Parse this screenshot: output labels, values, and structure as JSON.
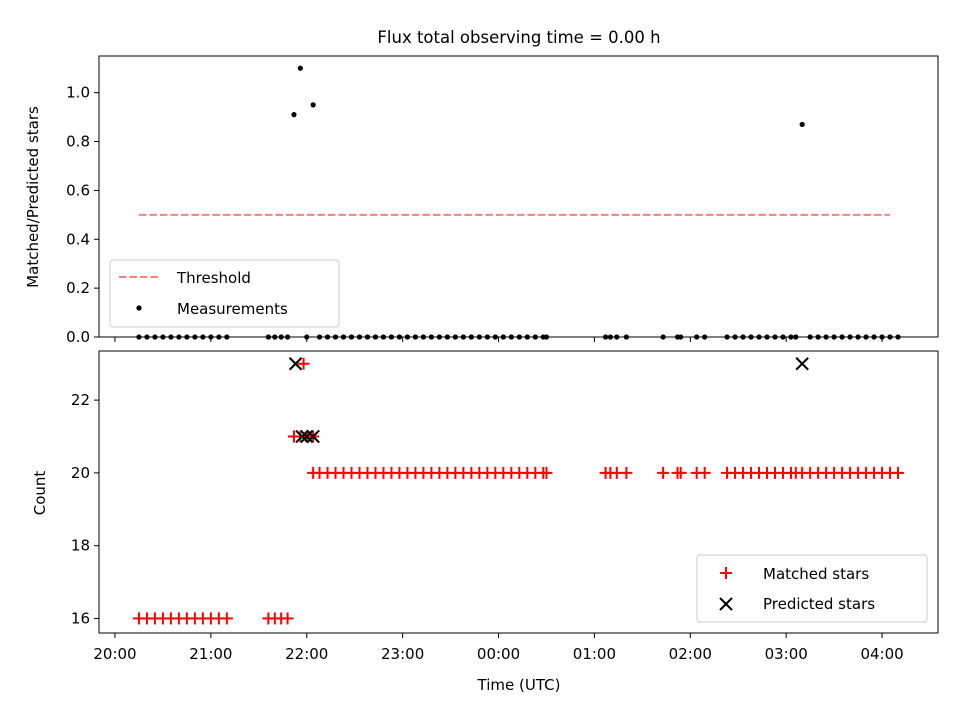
{
  "chart_data": [
    {
      "type": "scatter",
      "title": "Flux total observing time = 0.00 h",
      "xlabel": "",
      "ylabel": "Matched/Predicted stars",
      "xlim": [
        "19:50",
        "04:35"
      ],
      "ylim": [
        0,
        1.15
      ],
      "yticks": [
        "0.0",
        "0.2",
        "0.4",
        "0.6",
        "0.8",
        "1.0"
      ],
      "grid": false,
      "legend_position": "lower-left",
      "series": [
        {
          "name": "Threshold",
          "style": "dashed-line",
          "color": "#ff7f7f",
          "x": [
            "20:15",
            "04:05"
          ],
          "y": [
            0.5,
            0.5
          ]
        },
        {
          "name": "Measurements",
          "style": "dot",
          "color": "#000000",
          "points": [
            [
              "20:15",
              0
            ],
            [
              "20:20",
              0
            ],
            [
              "20:25",
              0
            ],
            [
              "20:30",
              0
            ],
            [
              "20:35",
              0
            ],
            [
              "20:40",
              0
            ],
            [
              "20:45",
              0
            ],
            [
              "20:50",
              0
            ],
            [
              "20:55",
              0
            ],
            [
              "21:00",
              0
            ],
            [
              "21:05",
              0
            ],
            [
              "21:10",
              0
            ],
            [
              "21:36",
              0
            ],
            [
              "21:40",
              0
            ],
            [
              "21:44",
              0
            ],
            [
              "21:48",
              0
            ],
            [
              "21:52",
              0.91
            ],
            [
              "21:56",
              1.1
            ],
            [
              "22:00",
              0
            ],
            [
              "22:04",
              0.95
            ],
            [
              "22:08",
              0
            ],
            [
              "22:13",
              0
            ],
            [
              "22:18",
              0
            ],
            [
              "22:23",
              0
            ],
            [
              "22:28",
              0
            ],
            [
              "22:33",
              0
            ],
            [
              "22:38",
              0
            ],
            [
              "22:43",
              0
            ],
            [
              "22:48",
              0
            ],
            [
              "22:53",
              0
            ],
            [
              "22:58",
              0
            ],
            [
              "23:03",
              0
            ],
            [
              "23:08",
              0
            ],
            [
              "23:13",
              0
            ],
            [
              "23:18",
              0
            ],
            [
              "23:23",
              0
            ],
            [
              "23:28",
              0
            ],
            [
              "23:33",
              0
            ],
            [
              "23:38",
              0
            ],
            [
              "23:43",
              0
            ],
            [
              "23:48",
              0
            ],
            [
              "23:53",
              0
            ],
            [
              "23:58",
              0
            ],
            [
              "00:03",
              0
            ],
            [
              "00:08",
              0
            ],
            [
              "00:13",
              0
            ],
            [
              "00:18",
              0
            ],
            [
              "00:23",
              0
            ],
            [
              "00:28",
              0
            ],
            [
              "00:30",
              0
            ],
            [
              "01:07",
              0
            ],
            [
              "01:10",
              0
            ],
            [
              "01:14",
              0
            ],
            [
              "01:20",
              0
            ],
            [
              "01:43",
              0
            ],
            [
              "01:52",
              0
            ],
            [
              "01:54",
              0
            ],
            [
              "02:04",
              0
            ],
            [
              "02:09",
              0
            ],
            [
              "02:23",
              0
            ],
            [
              "02:28",
              0
            ],
            [
              "02:33",
              0
            ],
            [
              "02:38",
              0
            ],
            [
              "02:43",
              0
            ],
            [
              "02:48",
              0
            ],
            [
              "02:53",
              0
            ],
            [
              "02:58",
              0
            ],
            [
              "03:03",
              0
            ],
            [
              "03:06",
              0
            ],
            [
              "03:10",
              0.87
            ],
            [
              "03:15",
              0
            ],
            [
              "03:20",
              0
            ],
            [
              "03:25",
              0
            ],
            [
              "03:30",
              0
            ],
            [
              "03:35",
              0
            ],
            [
              "03:40",
              0
            ],
            [
              "03:45",
              0
            ],
            [
              "03:50",
              0
            ],
            [
              "03:55",
              0
            ],
            [
              "04:00",
              0
            ],
            [
              "04:05",
              0
            ],
            [
              "04:10",
              0
            ]
          ]
        }
      ]
    },
    {
      "type": "scatter",
      "title": "",
      "xlabel": "Time (UTC)",
      "ylabel": "Count",
      "xlim": [
        "19:50",
        "04:35"
      ],
      "ylim": [
        15.6,
        23.35
      ],
      "xticks": [
        "20:00",
        "21:00",
        "22:00",
        "23:00",
        "00:00",
        "01:00",
        "02:00",
        "03:00",
        "04:00"
      ],
      "yticks": [
        "16",
        "18",
        "20",
        "22"
      ],
      "grid": false,
      "legend_position": "lower-right",
      "series": [
        {
          "name": "Matched stars",
          "style": "plus",
          "color": "#ff0000",
          "points": [
            [
              "20:15",
              16
            ],
            [
              "20:20",
              16
            ],
            [
              "20:25",
              16
            ],
            [
              "20:30",
              16
            ],
            [
              "20:35",
              16
            ],
            [
              "20:40",
              16
            ],
            [
              "20:45",
              16
            ],
            [
              "20:50",
              16
            ],
            [
              "20:55",
              16
            ],
            [
              "21:00",
              16
            ],
            [
              "21:05",
              16
            ],
            [
              "21:10",
              16
            ],
            [
              "21:36",
              16
            ],
            [
              "21:40",
              16
            ],
            [
              "21:44",
              16
            ],
            [
              "21:48",
              16
            ],
            [
              "21:52",
              21
            ],
            [
              "21:56",
              21
            ],
            [
              "21:58",
              23
            ],
            [
              "22:00",
              21
            ],
            [
              "22:04",
              21
            ],
            [
              "22:04",
              20
            ],
            [
              "22:08",
              20
            ],
            [
              "22:13",
              20
            ],
            [
              "22:18",
              20
            ],
            [
              "22:23",
              20
            ],
            [
              "22:28",
              20
            ],
            [
              "22:33",
              20
            ],
            [
              "22:38",
              20
            ],
            [
              "22:43",
              20
            ],
            [
              "22:48",
              20
            ],
            [
              "22:53",
              20
            ],
            [
              "22:58",
              20
            ],
            [
              "23:03",
              20
            ],
            [
              "23:08",
              20
            ],
            [
              "23:13",
              20
            ],
            [
              "23:18",
              20
            ],
            [
              "23:23",
              20
            ],
            [
              "23:28",
              20
            ],
            [
              "23:33",
              20
            ],
            [
              "23:38",
              20
            ],
            [
              "23:43",
              20
            ],
            [
              "23:48",
              20
            ],
            [
              "23:53",
              20
            ],
            [
              "23:58",
              20
            ],
            [
              "00:03",
              20
            ],
            [
              "00:08",
              20
            ],
            [
              "00:13",
              20
            ],
            [
              "00:18",
              20
            ],
            [
              "00:23",
              20
            ],
            [
              "00:28",
              20
            ],
            [
              "00:30",
              20
            ],
            [
              "01:07",
              20
            ],
            [
              "01:10",
              20
            ],
            [
              "01:14",
              20
            ],
            [
              "01:20",
              20
            ],
            [
              "01:43",
              20
            ],
            [
              "01:52",
              20
            ],
            [
              "01:54",
              20
            ],
            [
              "02:04",
              20
            ],
            [
              "02:09",
              20
            ],
            [
              "02:23",
              20
            ],
            [
              "02:28",
              20
            ],
            [
              "02:33",
              20
            ],
            [
              "02:38",
              20
            ],
            [
              "02:43",
              20
            ],
            [
              "02:48",
              20
            ],
            [
              "02:53",
              20
            ],
            [
              "02:58",
              20
            ],
            [
              "03:03",
              20
            ],
            [
              "03:06",
              20
            ],
            [
              "03:10",
              20
            ],
            [
              "03:15",
              20
            ],
            [
              "03:20",
              20
            ],
            [
              "03:25",
              20
            ],
            [
              "03:30",
              20
            ],
            [
              "03:35",
              20
            ],
            [
              "03:40",
              20
            ],
            [
              "03:45",
              20
            ],
            [
              "03:50",
              20
            ],
            [
              "03:55",
              20
            ],
            [
              "04:00",
              20
            ],
            [
              "04:05",
              20
            ],
            [
              "04:10",
              20
            ]
          ]
        },
        {
          "name": "Predicted stars",
          "style": "x",
          "color": "#000000",
          "points": [
            [
              "21:53",
              23
            ],
            [
              "21:57",
              21
            ],
            [
              "22:00",
              21
            ],
            [
              "22:04",
              21
            ],
            [
              "03:10",
              23
            ]
          ]
        }
      ]
    }
  ]
}
